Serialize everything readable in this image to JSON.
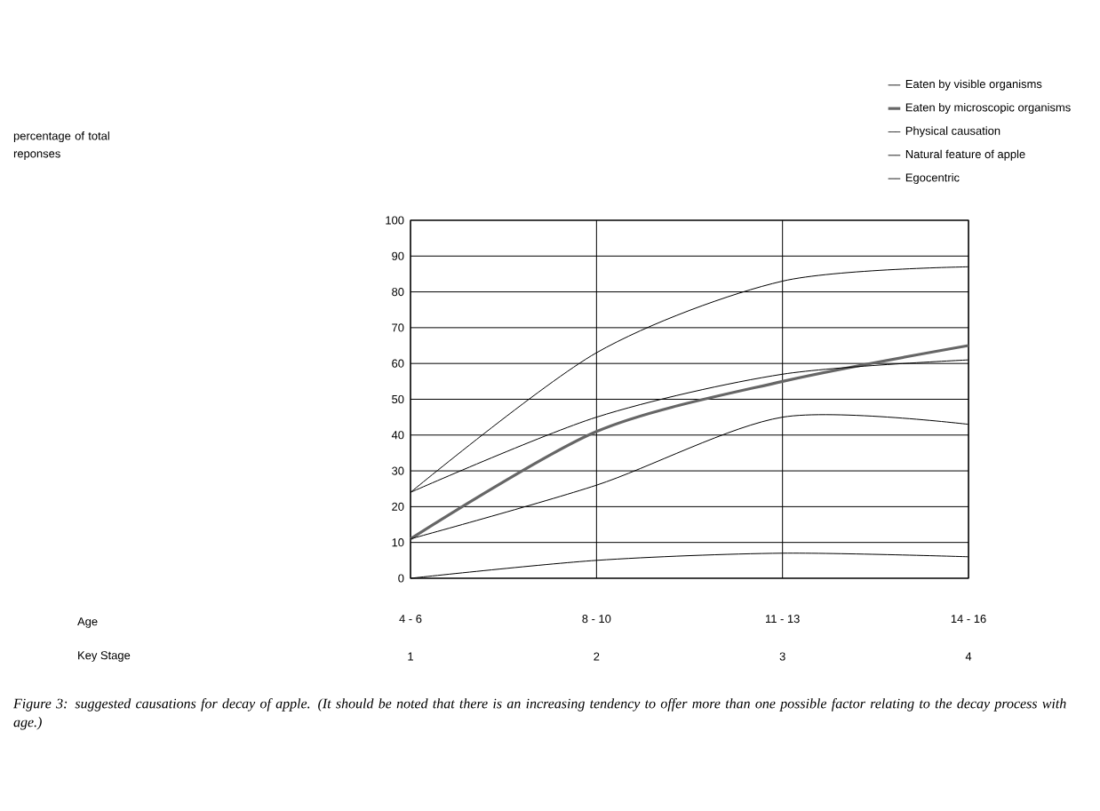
{
  "chart_data": {
    "type": "line",
    "categories": [
      "4 - 6",
      "8 - 10",
      "11 - 13",
      "14 - 16"
    ],
    "series": [
      {
        "name": "Eaten by visible organisms",
        "color": "#000000",
        "values": [
          24,
          63,
          83,
          87
        ]
      },
      {
        "name": "Eaten by microscopic organisms",
        "color": "#666666",
        "values": [
          11,
          41,
          55,
          65
        ]
      },
      {
        "name": "Physical causation",
        "color": "#000000",
        "values": [
          24,
          45,
          57,
          61
        ]
      },
      {
        "name": "Natural feature of apple",
        "color": "#000000",
        "values": [
          11,
          26,
          45,
          43
        ]
      },
      {
        "name": "Egocentric",
        "color": "#000000",
        "values": [
          0,
          5,
          7,
          6
        ]
      }
    ],
    "ylim": [
      0,
      100
    ],
    "yticks": [
      0,
      10,
      20,
      30,
      40,
      50,
      60,
      70,
      80,
      90,
      100
    ],
    "grid": true,
    "legend": "top right",
    "marker": "none",
    "annotations": [
      "percentage of total reponses",
      "Age",
      "Key Stage",
      "1",
      "2",
      "3",
      "4",
      "*Figure 3:  suggested causations for decay of apple.  (It should be noted that there is an increasing tendency to offer more than one possible factor relating to the decay process with age.)*"
    ]
  }
}
